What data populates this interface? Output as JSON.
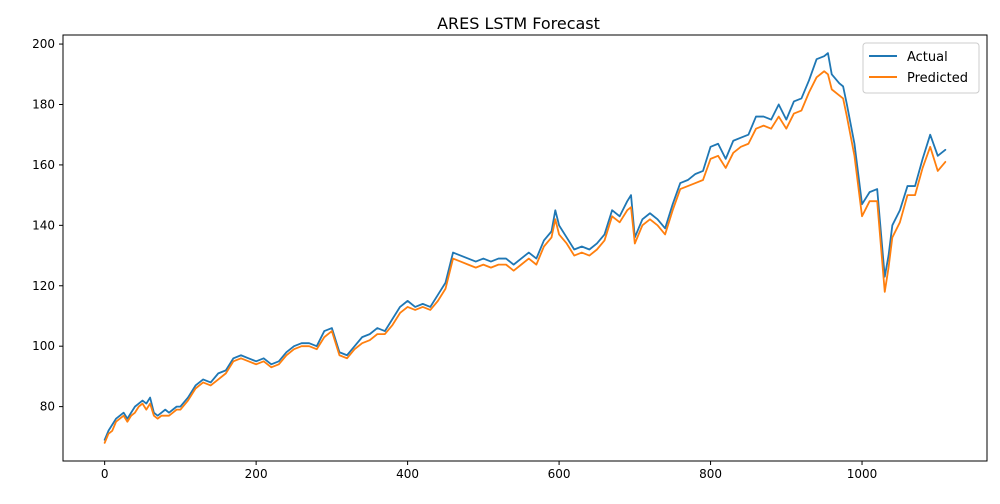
{
  "chart_data": {
    "type": "line",
    "title": "ARES LSTM Forecast",
    "xlabel": "",
    "ylabel": "",
    "xlim": [
      -55,
      1165
    ],
    "ylim": [
      62,
      203
    ],
    "xticks": [
      0,
      200,
      400,
      600,
      800,
      1000
    ],
    "yticks": [
      80,
      100,
      120,
      140,
      160,
      180,
      200
    ],
    "grid": false,
    "legend_position": "top-right",
    "series": [
      {
        "name": "Actual",
        "color": "#1f77b4",
        "x": [
          0,
          5,
          10,
          15,
          20,
          25,
          30,
          35,
          40,
          45,
          50,
          55,
          60,
          65,
          70,
          75,
          80,
          85,
          90,
          95,
          100,
          110,
          120,
          130,
          140,
          150,
          160,
          170,
          180,
          190,
          200,
          210,
          220,
          230,
          240,
          250,
          260,
          270,
          280,
          290,
          300,
          310,
          320,
          330,
          340,
          350,
          360,
          370,
          380,
          390,
          400,
          410,
          420,
          430,
          440,
          450,
          460,
          470,
          480,
          490,
          500,
          510,
          520,
          530,
          540,
          550,
          560,
          570,
          580,
          590,
          595,
          600,
          610,
          620,
          630,
          640,
          650,
          660,
          670,
          680,
          690,
          695,
          700,
          710,
          720,
          730,
          740,
          750,
          760,
          770,
          780,
          790,
          800,
          810,
          820,
          830,
          840,
          850,
          860,
          870,
          880,
          890,
          900,
          910,
          920,
          930,
          940,
          950,
          955,
          960,
          970,
          975,
          980,
          990,
          1000,
          1010,
          1020,
          1030,
          1035,
          1040,
          1050,
          1060,
          1070,
          1080,
          1090,
          1100,
          1110
        ],
        "y": [
          69,
          72,
          74,
          76,
          77,
          78,
          76,
          78,
          80,
          81,
          82,
          81,
          83,
          78,
          77,
          78,
          79,
          78,
          79,
          80,
          80,
          83,
          87,
          89,
          88,
          91,
          92,
          96,
          97,
          96,
          95,
          96,
          94,
          95,
          98,
          100,
          101,
          101,
          100,
          105,
          106,
          98,
          97,
          100,
          103,
          104,
          106,
          105,
          109,
          113,
          115,
          113,
          114,
          113,
          117,
          121,
          131,
          130,
          129,
          128,
          129,
          128,
          129,
          129,
          127,
          129,
          131,
          129,
          135,
          138,
          145,
          140,
          136,
          132,
          133,
          132,
          134,
          137,
          145,
          143,
          148,
          150,
          136,
          142,
          144,
          142,
          139,
          147,
          154,
          155,
          157,
          158,
          166,
          167,
          162,
          168,
          169,
          170,
          176,
          176,
          175,
          180,
          175,
          181,
          182,
          188,
          195,
          196,
          197,
          190,
          187,
          186,
          180,
          167,
          147,
          151,
          152,
          123,
          130,
          140,
          145,
          153,
          153,
          162,
          170,
          163,
          165
        ]
      },
      {
        "name": "Predicted",
        "color": "#ff7f0e",
        "x": [
          0,
          5,
          10,
          15,
          20,
          25,
          30,
          35,
          40,
          45,
          50,
          55,
          60,
          65,
          70,
          75,
          80,
          85,
          90,
          95,
          100,
          110,
          120,
          130,
          140,
          150,
          160,
          170,
          180,
          190,
          200,
          210,
          220,
          230,
          240,
          250,
          260,
          270,
          280,
          290,
          300,
          310,
          320,
          330,
          340,
          350,
          360,
          370,
          380,
          390,
          400,
          410,
          420,
          430,
          440,
          450,
          460,
          470,
          480,
          490,
          500,
          510,
          520,
          530,
          540,
          550,
          560,
          570,
          580,
          590,
          595,
          600,
          610,
          620,
          630,
          640,
          650,
          660,
          670,
          680,
          690,
          695,
          700,
          710,
          720,
          730,
          740,
          750,
          760,
          770,
          780,
          790,
          800,
          810,
          820,
          830,
          840,
          850,
          860,
          870,
          880,
          890,
          900,
          910,
          920,
          930,
          940,
          950,
          955,
          960,
          970,
          975,
          980,
          990,
          1000,
          1010,
          1020,
          1030,
          1035,
          1040,
          1050,
          1060,
          1070,
          1080,
          1090,
          1100,
          1110
        ],
        "y": [
          68,
          71,
          72,
          75,
          76,
          77,
          75,
          77,
          78,
          80,
          81,
          79,
          81,
          77,
          76,
          77,
          77,
          77,
          78,
          79,
          79,
          82,
          86,
          88,
          87,
          89,
          91,
          95,
          96,
          95,
          94,
          95,
          93,
          94,
          97,
          99,
          100,
          100,
          99,
          103,
          105,
          97,
          96,
          99,
          101,
          102,
          104,
          104,
          107,
          111,
          113,
          112,
          113,
          112,
          115,
          119,
          129,
          128,
          127,
          126,
          127,
          126,
          127,
          127,
          125,
          127,
          129,
          127,
          133,
          136,
          142,
          137,
          134,
          130,
          131,
          130,
          132,
          135,
          143,
          141,
          145,
          146,
          134,
          140,
          142,
          140,
          137,
          145,
          152,
          153,
          154,
          155,
          162,
          163,
          159,
          164,
          166,
          167,
          172,
          173,
          172,
          176,
          172,
          177,
          178,
          184,
          189,
          191,
          190,
          185,
          183,
          182,
          176,
          163,
          143,
          148,
          148,
          118,
          126,
          136,
          141,
          150,
          150,
          159,
          166,
          158,
          161
        ]
      }
    ]
  }
}
